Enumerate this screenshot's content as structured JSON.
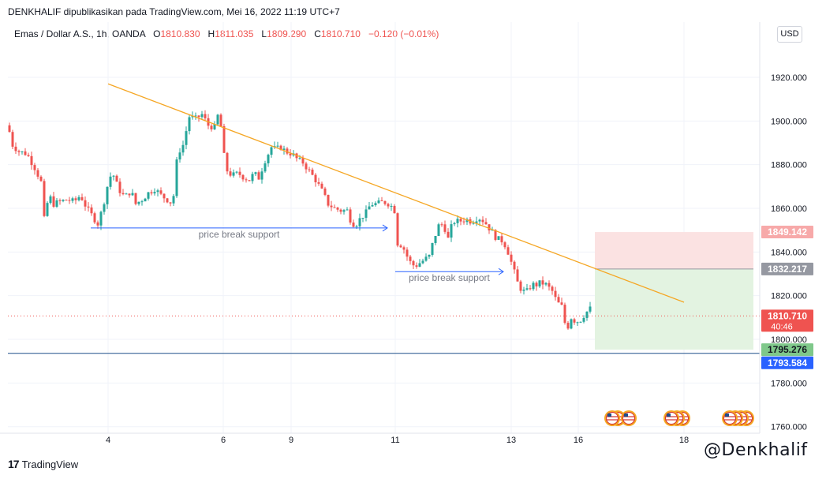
{
  "header": {
    "publisher": "DENKHALIF dipublikasikan pada TradingView.com, Mei 16, 2022 11:19 UTC+7"
  },
  "legend": {
    "symbol": "Emas / Dollar A.S., 1h, OANDA",
    "open_label": "O",
    "open": "1810.830",
    "high_label": "H",
    "high": "1811.035",
    "low_label": "L",
    "low": "1809.290",
    "close_label": "C",
    "close": "1810.710",
    "change": "−0.120 (−0.01%)"
  },
  "currency_button": "USD",
  "footer": {
    "logo_mark": "17",
    "logo_text": "TradingView"
  },
  "watermark": "@Denkhalif",
  "colors": {
    "up": "#26a69a",
    "down": "#ef5350",
    "trendline": "#f5a623",
    "annotation_arrow": "#2962ff",
    "stop_zone": "#fbe2e2",
    "target_zone": "#e3f3e1",
    "support_line": "#1e4f8a"
  },
  "chart_data": {
    "type": "candlestick",
    "y_axis": {
      "ylim": [
        1757,
        1933
      ],
      "ticks": [
        "1920.000",
        "1900.000",
        "1880.000",
        "1860.000",
        "1840.000",
        "1820.000",
        "1800.000",
        "1780.000",
        "1760.000"
      ]
    },
    "x_axis": {
      "ticks": [
        "4",
        "6",
        "9",
        "11",
        "13",
        "16",
        "18"
      ]
    },
    "price_path": [
      [
        0,
        1898
      ],
      [
        6,
        1889
      ],
      [
        14,
        1886
      ],
      [
        24,
        1885
      ],
      [
        35,
        1878
      ],
      [
        42,
        1872
      ],
      [
        46,
        1855
      ],
      [
        52,
        1866
      ],
      [
        58,
        1862
      ],
      [
        66,
        1863
      ],
      [
        75,
        1864
      ],
      [
        84,
        1863
      ],
      [
        92,
        1866
      ],
      [
        100,
        1860
      ],
      [
        108,
        1856
      ],
      [
        114,
        1853
      ],
      [
        120,
        1860
      ],
      [
        126,
        1870
      ],
      [
        132,
        1877
      ],
      [
        140,
        1869
      ],
      [
        148,
        1865
      ],
      [
        156,
        1868
      ],
      [
        162,
        1862
      ],
      [
        170,
        1864
      ],
      [
        178,
        1867
      ],
      [
        186,
        1869
      ],
      [
        194,
        1866
      ],
      [
        202,
        1864
      ],
      [
        209,
        1862
      ],
      [
        215,
        1885
      ],
      [
        222,
        1889
      ],
      [
        230,
        1902
      ],
      [
        238,
        1901
      ],
      [
        246,
        1903
      ],
      [
        254,
        1898
      ],
      [
        262,
        1897
      ],
      [
        268,
        1905
      ],
      [
        272,
        1890
      ],
      [
        276,
        1878
      ],
      [
        284,
        1875
      ],
      [
        292,
        1876
      ],
      [
        300,
        1874
      ],
      [
        306,
        1873
      ],
      [
        312,
        1876
      ],
      [
        318,
        1874
      ],
      [
        326,
        1882
      ],
      [
        334,
        1888
      ],
      [
        340,
        1887
      ],
      [
        346,
        1888
      ],
      [
        352,
        1886
      ],
      [
        360,
        1885
      ],
      [
        368,
        1882
      ],
      [
        374,
        1881
      ],
      [
        382,
        1877
      ],
      [
        390,
        1873
      ],
      [
        398,
        1868
      ],
      [
        406,
        1862
      ],
      [
        414,
        1860
      ],
      [
        422,
        1859
      ],
      [
        430,
        1859
      ],
      [
        436,
        1853
      ],
      [
        442,
        1853
      ],
      [
        448,
        1856
      ],
      [
        454,
        1858
      ],
      [
        460,
        1862
      ],
      [
        468,
        1862
      ],
      [
        476,
        1863
      ],
      [
        484,
        1862
      ],
      [
        490,
        1859
      ],
      [
        494,
        1844
      ],
      [
        500,
        1843
      ],
      [
        506,
        1838
      ],
      [
        512,
        1834
      ],
      [
        518,
        1834
      ],
      [
        526,
        1836
      ],
      [
        534,
        1838
      ],
      [
        540,
        1846
      ],
      [
        546,
        1852
      ],
      [
        552,
        1853
      ],
      [
        558,
        1846
      ],
      [
        564,
        1854
      ],
      [
        572,
        1854
      ],
      [
        580,
        1855
      ],
      [
        588,
        1854
      ],
      [
        596,
        1856
      ],
      [
        604,
        1854
      ],
      [
        612,
        1850
      ],
      [
        620,
        1846
      ],
      [
        628,
        1845
      ],
      [
        634,
        1840
      ],
      [
        640,
        1833
      ],
      [
        646,
        1826
      ],
      [
        652,
        1822
      ],
      [
        658,
        1822
      ],
      [
        664,
        1825
      ],
      [
        670,
        1825
      ],
      [
        676,
        1826
      ],
      [
        682,
        1825
      ],
      [
        690,
        1822
      ],
      [
        696,
        1817
      ],
      [
        702,
        1815
      ],
      [
        708,
        1804
      ],
      [
        714,
        1810
      ],
      [
        720,
        1808
      ],
      [
        726,
        1809
      ],
      [
        732,
        1812
      ],
      [
        738,
        1814
      ],
      [
        744,
        1810
      ],
      [
        750,
        1810.71
      ]
    ],
    "trendline": {
      "from": [
        "Mei 4",
        1917
      ],
      "to": [
        "Mei 18",
        1817
      ]
    },
    "annotations": [
      {
        "text": "price break support",
        "level": 1851,
        "from": "Mei 3",
        "to": "Mei 11"
      },
      {
        "text": "price break support",
        "level": 1831,
        "from": "Mei 11",
        "to": "Mei 13"
      }
    ],
    "position": {
      "stop": 1849.142,
      "entry": 1832.217,
      "target": 1795.276
    },
    "support_level": 1793.584,
    "last_price": 1810.71,
    "countdown": "40:46",
    "price_labels": {
      "stop": "1849.142",
      "entry": "1832.217",
      "last": "1810.710",
      "countdown": "40:46",
      "target": "1795.276",
      "support": "1793.584"
    }
  }
}
